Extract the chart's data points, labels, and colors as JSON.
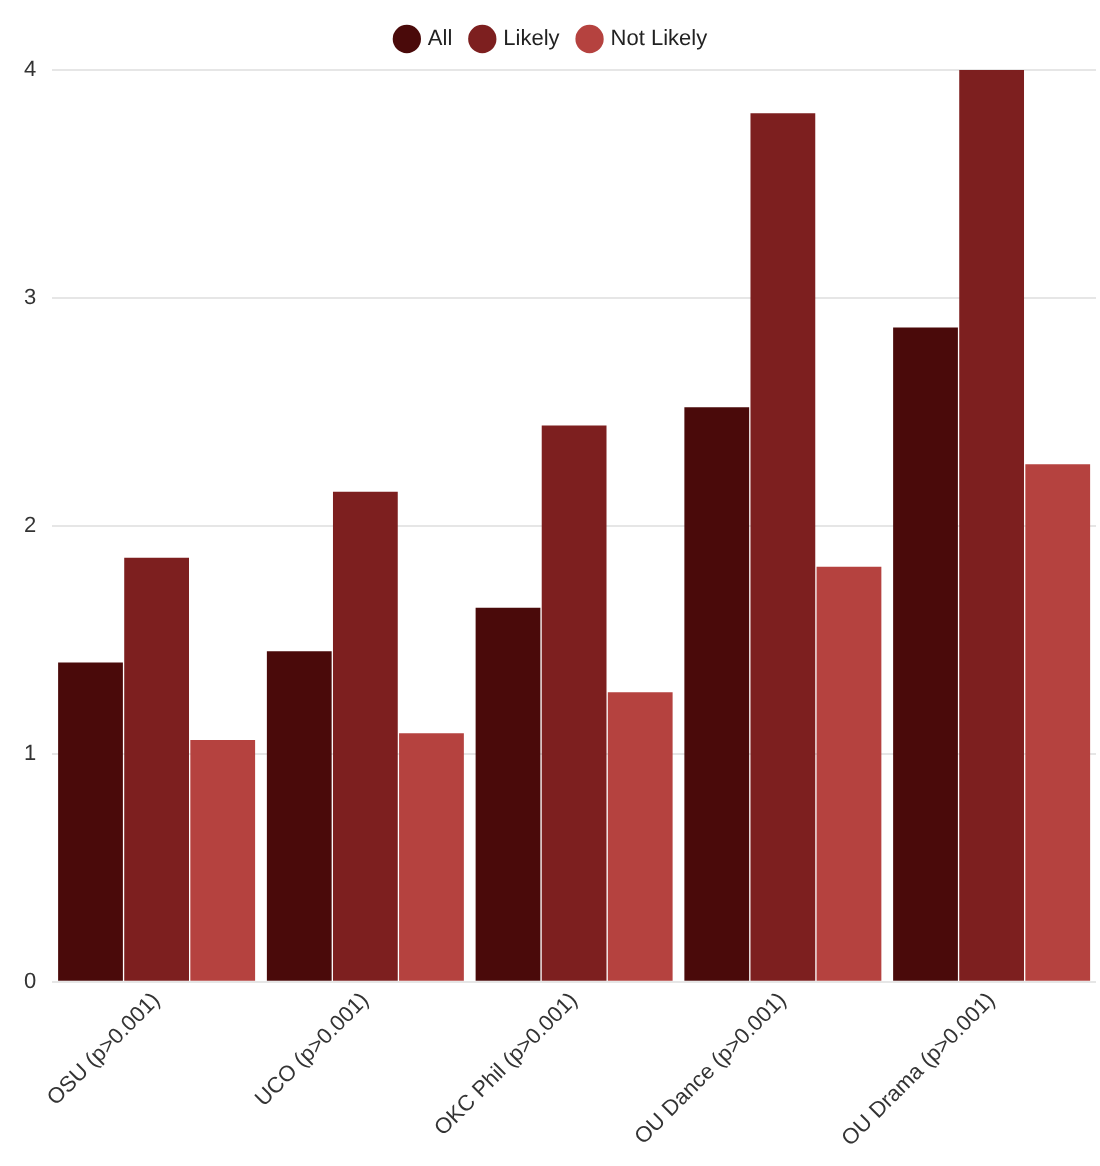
{
  "chart_data": {
    "type": "bar",
    "categories": [
      "OSU (p>0.001)",
      "UCO (p>0.001)",
      "OKC Phil (p>0.001)",
      "OU Dance (p>0.001)",
      "OU Drama (p>0.001)"
    ],
    "series": [
      {
        "name": "All",
        "color": "#4a0a0a",
        "values": [
          1.4,
          1.45,
          1.64,
          2.52,
          2.87
        ]
      },
      {
        "name": "Likely",
        "color": "#7d1f1f",
        "values": [
          1.86,
          2.15,
          2.44,
          3.81,
          4.0
        ]
      },
      {
        "name": "Not Likely",
        "color": "#b5423f",
        "values": [
          1.06,
          1.09,
          1.27,
          1.82,
          2.27
        ]
      }
    ],
    "ylim": [
      0,
      4
    ],
    "yticks": [
      0,
      1,
      2,
      3,
      4
    ],
    "grid": "y",
    "legend": "top"
  }
}
